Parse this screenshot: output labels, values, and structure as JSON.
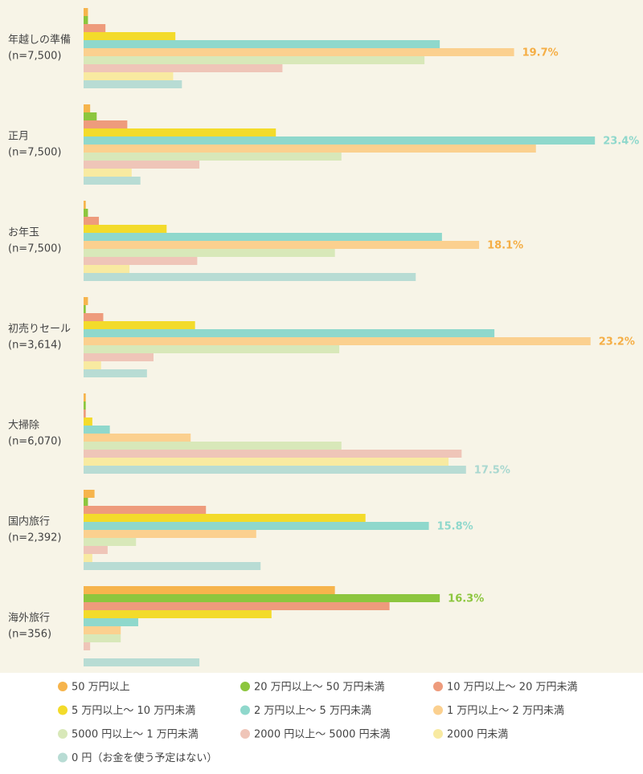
{
  "chart_data": {
    "type": "bar",
    "orientation": "horizontal",
    "categories": [
      "年越しの準備",
      "正月",
      "お年玉",
      "初売りセール",
      "大掃除",
      "国内旅行",
      "海外旅行"
    ],
    "category_notes": [
      "(n=7,500)",
      "(n=7,500)",
      "(n=7,500)",
      "(n=3,614)",
      "(n=6,070)",
      "(n=2,392)",
      "(n=356)"
    ],
    "xlim": [
      0,
      25.6
    ],
    "series": [
      {
        "name": "50 万円以上",
        "color": "#f6b44c",
        "values": [
          0.2,
          0.3,
          0.1,
          0.2,
          0.1,
          0.5,
          11.5
        ]
      },
      {
        "name": "20 万円以上～ 50 万円未満",
        "color": "#8cc63e",
        "label_color": "#8cc63e",
        "values": [
          0.2,
          0.6,
          0.2,
          0.1,
          0.1,
          0.2,
          16.3
        ],
        "value_labels": [
          null,
          null,
          null,
          null,
          null,
          null,
          "16.3%"
        ]
      },
      {
        "name": "10 万円以上～ 20 万円未満",
        "color": "#ee9b7c",
        "values": [
          1.0,
          2.0,
          0.7,
          0.9,
          0.1,
          5.6,
          14.0
        ]
      },
      {
        "name": "5 万円以上～ 10 万円未満",
        "color": "#f3db2b",
        "values": [
          4.2,
          8.8,
          3.8,
          5.1,
          0.4,
          12.9,
          8.6
        ]
      },
      {
        "name": "2 万円以上～ 5 万円未満",
        "color": "#8fd8cc",
        "label_color": "#8fd8cc",
        "values": [
          16.3,
          23.4,
          16.4,
          18.8,
          1.2,
          15.8,
          2.5
        ],
        "value_labels": [
          null,
          "23.4%",
          null,
          null,
          null,
          "15.8%",
          null
        ]
      },
      {
        "name": "1 万円以上～ 2 万円未満",
        "color": "#fbd08f",
        "label_color": "#f5ae45",
        "values": [
          19.7,
          20.7,
          18.1,
          23.2,
          4.9,
          7.9,
          1.7
        ],
        "value_labels": [
          "19.7%",
          null,
          "18.1%",
          "23.2%",
          null,
          null,
          null
        ]
      },
      {
        "name": "5000 円以上～ 1 万円未満",
        "color": "#d8e8b9",
        "values": [
          15.6,
          11.8,
          11.5,
          11.7,
          11.8,
          2.4,
          1.7
        ]
      },
      {
        "name": "2000 円以上～ 5000 円未満",
        "color": "#efc5b8",
        "values": [
          9.1,
          5.3,
          5.2,
          3.2,
          17.3,
          1.1,
          0.3
        ]
      },
      {
        "name": "2000 円未満",
        "color": "#f8eaa1",
        "values": [
          4.1,
          2.2,
          2.1,
          0.8,
          16.7,
          0.4,
          0
        ]
      },
      {
        "name": "0 円（お金を使う予定はない）",
        "color": "#b8dcd4",
        "label_color": "#a9d8d0",
        "values": [
          4.5,
          2.6,
          15.2,
          2.9,
          17.5,
          8.1,
          5.3
        ],
        "value_labels": [
          null,
          null,
          null,
          null,
          "17.5%",
          null,
          null
        ]
      }
    ]
  }
}
